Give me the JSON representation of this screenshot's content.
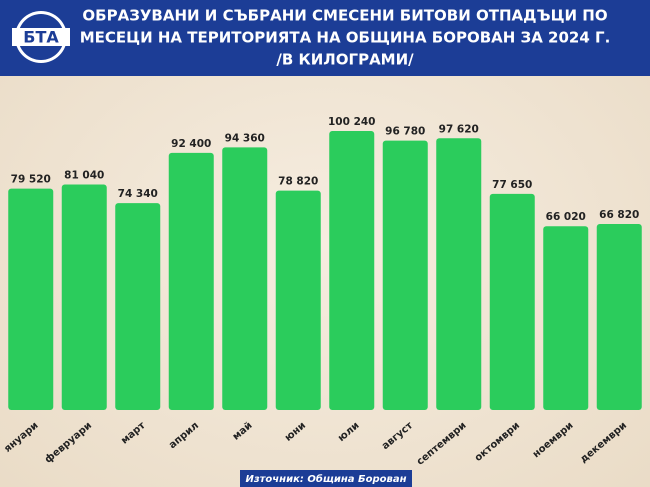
{
  "brand": "БТА",
  "chart_data": {
    "type": "bar",
    "title": [
      "ОБРАЗУВАНИ И СЪБРАНИ СМЕСЕНИ БИТОВИ ОТПАДЪЦИ ПО",
      "МЕСЕЦИ НА ТЕРИТОРИЯТА НА ОБЩИНА БОРОВАН ЗА 2024 Г.",
      "/В КИЛОГРАМИ/"
    ],
    "categories": [
      "януари",
      "февруари",
      "март",
      "април",
      "май",
      "юни",
      "юли",
      "август",
      "септември",
      "октомври",
      "ноември",
      "декември"
    ],
    "values": [
      79520,
      81040,
      74340,
      92400,
      94360,
      78820,
      100240,
      96780,
      97620,
      77650,
      66020,
      66820
    ],
    "value_labels": [
      "79 520",
      "81 040",
      "74 340",
      "92 400",
      "94 360",
      "78 820",
      "100 240",
      "96 780",
      "97 620",
      "77 650",
      "66 020",
      "66 820"
    ],
    "color": "#2bcc5c",
    "source": "Източник: Община Борован"
  }
}
